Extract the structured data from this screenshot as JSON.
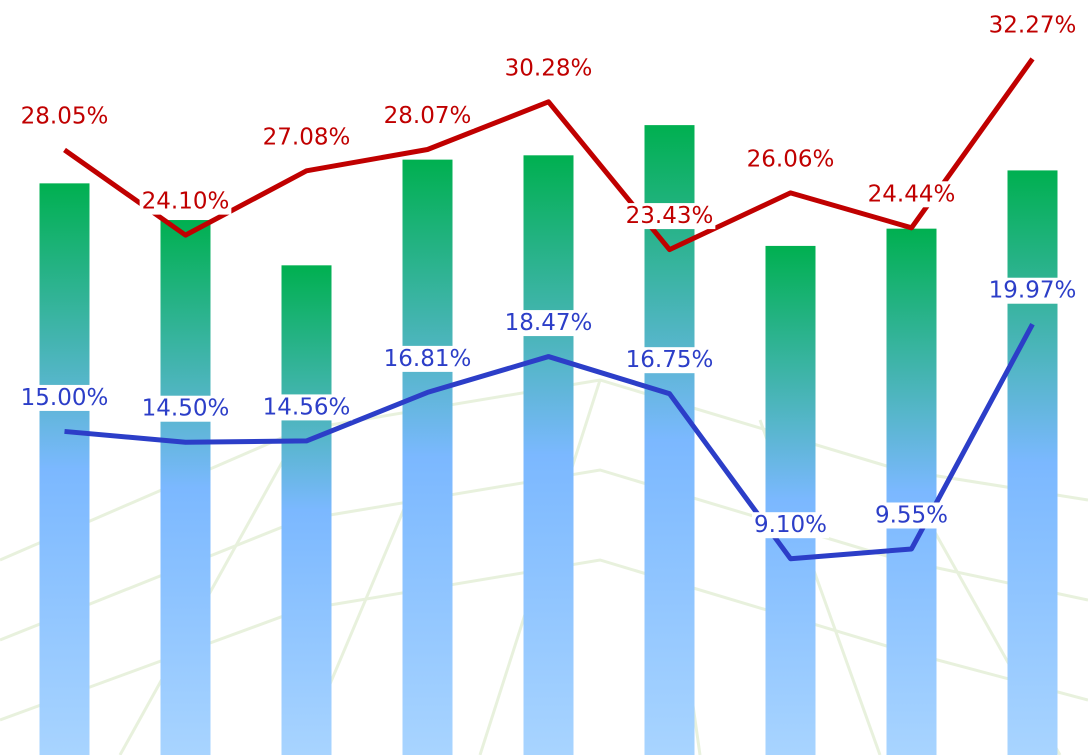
{
  "chart_data": {
    "type": "combo",
    "categories": [
      null,
      null,
      null,
      null,
      null,
      null,
      null,
      null,
      null
    ],
    "ylim": [
      0,
      35
    ],
    "series": [
      {
        "type": "bar",
        "color": [
          "#00b050",
          "#7bb8ff",
          "#a8d4ff"
        ],
        "values": [
          26.5,
          24.8,
          22.7,
          27.6,
          27.8,
          29.2,
          23.6,
          24.4,
          27.1
        ]
      },
      {
        "type": "line",
        "color": "#c00000",
        "values": [
          28.05,
          24.1,
          27.08,
          28.07,
          30.28,
          23.43,
          26.06,
          24.44,
          32.27
        ],
        "value_labels": [
          "28.05%",
          "24.10%",
          "27.08%",
          "28.07%",
          "30.28%",
          "23.43%",
          "26.06%",
          "24.44%",
          "32.27%"
        ]
      },
      {
        "type": "line",
        "color": "#2c3ec8",
        "values": [
          15.0,
          14.5,
          14.56,
          16.81,
          18.47,
          16.75,
          9.1,
          9.55,
          19.97
        ],
        "value_labels": [
          "15.00%",
          "14.50%",
          "14.56%",
          "16.81%",
          "18.47%",
          "16.75%",
          "9.10%",
          "9.55%",
          "19.97%"
        ]
      }
    ]
  }
}
